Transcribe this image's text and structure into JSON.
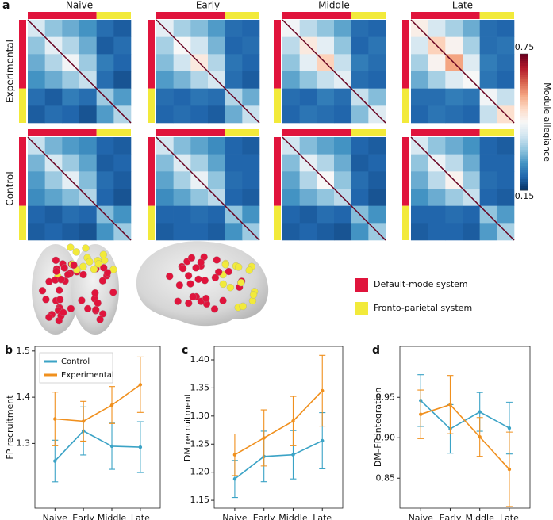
{
  "chart_data": [
    {
      "type": "heatmap",
      "panel": "a",
      "columns": [
        "Naive",
        "Early",
        "Middle",
        "Late"
      ],
      "rows": [
        "Experimental",
        "Control"
      ],
      "clim": [
        0.15,
        0.75
      ],
      "colorbar_ticks": [
        0.15,
        0.75
      ],
      "colorbar_label": "Module allegiance",
      "colormap": [
        "#053061",
        "#2166ac",
        "#4393c3",
        "#92c5de",
        "#d1e5f0",
        "#f7f7f7",
        "#fddbc7",
        "#f4a582",
        "#d6604d",
        "#b2182b",
        "#67001f"
      ],
      "systems": [
        {
          "name": "Default-mode system",
          "color": "#e0143c"
        },
        {
          "name": "Fronto-parietal system",
          "color": "#f2ea3a"
        }
      ],
      "matrices": [
        [
          [
            [
              0.4,
              0.33,
              0.3,
              0.27,
              0.22,
              0.2
            ],
            [
              0.33,
              0.42,
              0.36,
              0.3,
              0.2,
              0.22
            ],
            [
              0.3,
              0.36,
              0.44,
              0.34,
              0.24,
              0.21
            ],
            [
              0.27,
              0.3,
              0.34,
              0.38,
              0.22,
              0.19
            ],
            [
              0.22,
              0.2,
              0.24,
              0.22,
              0.34,
              0.28
            ],
            [
              0.2,
              0.22,
              0.21,
              0.19,
              0.28,
              0.36
            ]
          ],
          [
            [
              0.42,
              0.35,
              0.32,
              0.28,
              0.22,
              0.21
            ],
            [
              0.35,
              0.45,
              0.39,
              0.31,
              0.21,
              0.22
            ],
            [
              0.32,
              0.39,
              0.48,
              0.36,
              0.23,
              0.21
            ],
            [
              0.28,
              0.31,
              0.36,
              0.4,
              0.22,
              0.2
            ],
            [
              0.22,
              0.21,
              0.23,
              0.22,
              0.36,
              0.3
            ],
            [
              0.21,
              0.22,
              0.21,
              0.2,
              0.3,
              0.38
            ]
          ],
          [
            [
              0.44,
              0.37,
              0.33,
              0.29,
              0.22,
              0.21
            ],
            [
              0.37,
              0.48,
              0.42,
              0.33,
              0.21,
              0.23
            ],
            [
              0.33,
              0.42,
              0.52,
              0.38,
              0.24,
              0.22
            ],
            [
              0.29,
              0.33,
              0.38,
              0.42,
              0.22,
              0.21
            ],
            [
              0.22,
              0.21,
              0.24,
              0.22,
              0.38,
              0.32
            ],
            [
              0.21,
              0.23,
              0.22,
              0.21,
              0.32,
              0.41
            ]
          ],
          [
            [
              0.47,
              0.4,
              0.35,
              0.3,
              0.22,
              0.21
            ],
            [
              0.4,
              0.52,
              0.46,
              0.35,
              0.22,
              0.23
            ],
            [
              0.35,
              0.46,
              0.57,
              0.41,
              0.24,
              0.22
            ],
            [
              0.3,
              0.35,
              0.41,
              0.45,
              0.23,
              0.21
            ],
            [
              0.22,
              0.22,
              0.24,
              0.23,
              0.44,
              0.38
            ],
            [
              0.21,
              0.23,
              0.22,
              0.21,
              0.38,
              0.5
            ]
          ]
        ],
        [
          [
            [
              0.38,
              0.31,
              0.28,
              0.26,
              0.21,
              0.2
            ],
            [
              0.31,
              0.4,
              0.34,
              0.29,
              0.2,
              0.21
            ],
            [
              0.28,
              0.34,
              0.42,
              0.32,
              0.22,
              0.2
            ],
            [
              0.26,
              0.29,
              0.32,
              0.36,
              0.21,
              0.19
            ],
            [
              0.21,
              0.2,
              0.22,
              0.21,
              0.32,
              0.27
            ],
            [
              0.2,
              0.21,
              0.2,
              0.19,
              0.27,
              0.34
            ]
          ],
          [
            [
              0.39,
              0.32,
              0.29,
              0.26,
              0.21,
              0.2
            ],
            [
              0.32,
              0.41,
              0.35,
              0.29,
              0.21,
              0.21
            ],
            [
              0.29,
              0.35,
              0.43,
              0.33,
              0.22,
              0.21
            ],
            [
              0.26,
              0.29,
              0.33,
              0.37,
              0.21,
              0.2
            ],
            [
              0.21,
              0.21,
              0.22,
              0.21,
              0.33,
              0.27
            ],
            [
              0.2,
              0.21,
              0.21,
              0.2,
              0.27,
              0.34
            ]
          ],
          [
            [
              0.39,
              0.32,
              0.29,
              0.27,
              0.21,
              0.2
            ],
            [
              0.32,
              0.42,
              0.36,
              0.3,
              0.2,
              0.21
            ],
            [
              0.29,
              0.36,
              0.45,
              0.33,
              0.22,
              0.2
            ],
            [
              0.27,
              0.3,
              0.33,
              0.37,
              0.21,
              0.19
            ],
            [
              0.21,
              0.2,
              0.22,
              0.21,
              0.32,
              0.27
            ],
            [
              0.2,
              0.21,
              0.2,
              0.19,
              0.27,
              0.34
            ]
          ],
          [
            [
              0.4,
              0.33,
              0.3,
              0.27,
              0.21,
              0.2
            ],
            [
              0.33,
              0.43,
              0.37,
              0.3,
              0.21,
              0.21
            ],
            [
              0.3,
              0.37,
              0.46,
              0.34,
              0.22,
              0.21
            ],
            [
              0.27,
              0.3,
              0.34,
              0.38,
              0.21,
              0.2
            ],
            [
              0.21,
              0.21,
              0.22,
              0.21,
              0.33,
              0.28
            ],
            [
              0.2,
              0.21,
              0.21,
              0.2,
              0.28,
              0.35
            ]
          ]
        ]
      ]
    },
    {
      "type": "line",
      "panel": "b",
      "y_label": "FP recruitment",
      "legend": "upper left",
      "categories": [
        "Naive",
        "Early",
        "Middle",
        "Late"
      ],
      "ylim": [
        1.16,
        1.51
      ],
      "yticks": [
        1.3,
        1.4,
        1.5
      ],
      "series": [
        {
          "name": "Control",
          "color": "#3ba3c6",
          "values": [
            1.262,
            1.327,
            1.294,
            1.292
          ],
          "errors": [
            0.045,
            0.052,
            0.05,
            0.055
          ]
        },
        {
          "name": "Experimental",
          "color": "#f0901e",
          "values": [
            1.353,
            1.348,
            1.383,
            1.427
          ],
          "errors": [
            0.058,
            0.043,
            0.04,
            0.06
          ]
        }
      ]
    },
    {
      "type": "line",
      "panel": "c",
      "y_label": "DM recruitment",
      "categories": [
        "Naive",
        "Early",
        "Middle",
        "Late"
      ],
      "ylim": [
        1.136,
        1.424
      ],
      "yticks": [
        1.15,
        {
          "value": 1.2,
          "label": "1.20"
        },
        1.25,
        {
          "value": 1.3,
          "label": "1.30"
        },
        1.35,
        {
          "value": 1.4,
          "label": "1.40"
        }
      ],
      "series": [
        {
          "name": "Control",
          "color": "#3ba3c6",
          "values": [
            1.188,
            1.228,
            1.231,
            1.256
          ],
          "errors": [
            0.033,
            0.045,
            0.043,
            0.05
          ]
        },
        {
          "name": "Experimental",
          "color": "#f0901e",
          "values": [
            1.231,
            1.261,
            1.291,
            1.345
          ],
          "errors": [
            0.037,
            0.05,
            0.044,
            0.063
          ]
        }
      ]
    },
    {
      "type": "line",
      "panel": "d",
      "y_label": "DM–FP integration",
      "categories": [
        "Naive",
        "Early",
        "Middle",
        "Late"
      ],
      "ylim": [
        0.813,
        1.013
      ],
      "yticks": [
        0.85,
        {
          "value": 0.9,
          "label": "0.90"
        },
        0.95
      ],
      "series": [
        {
          "name": "Control",
          "color": "#3ba3c6",
          "values": [
            0.946,
            0.911,
            0.932,
            0.912
          ],
          "errors": [
            0.032,
            0.03,
            0.024,
            0.032
          ]
        },
        {
          "name": "Experimental",
          "color": "#f0901e",
          "values": [
            0.929,
            0.941,
            0.901,
            0.861
          ],
          "errors": [
            0.03,
            0.036,
            0.024,
            0.046
          ]
        }
      ]
    }
  ]
}
